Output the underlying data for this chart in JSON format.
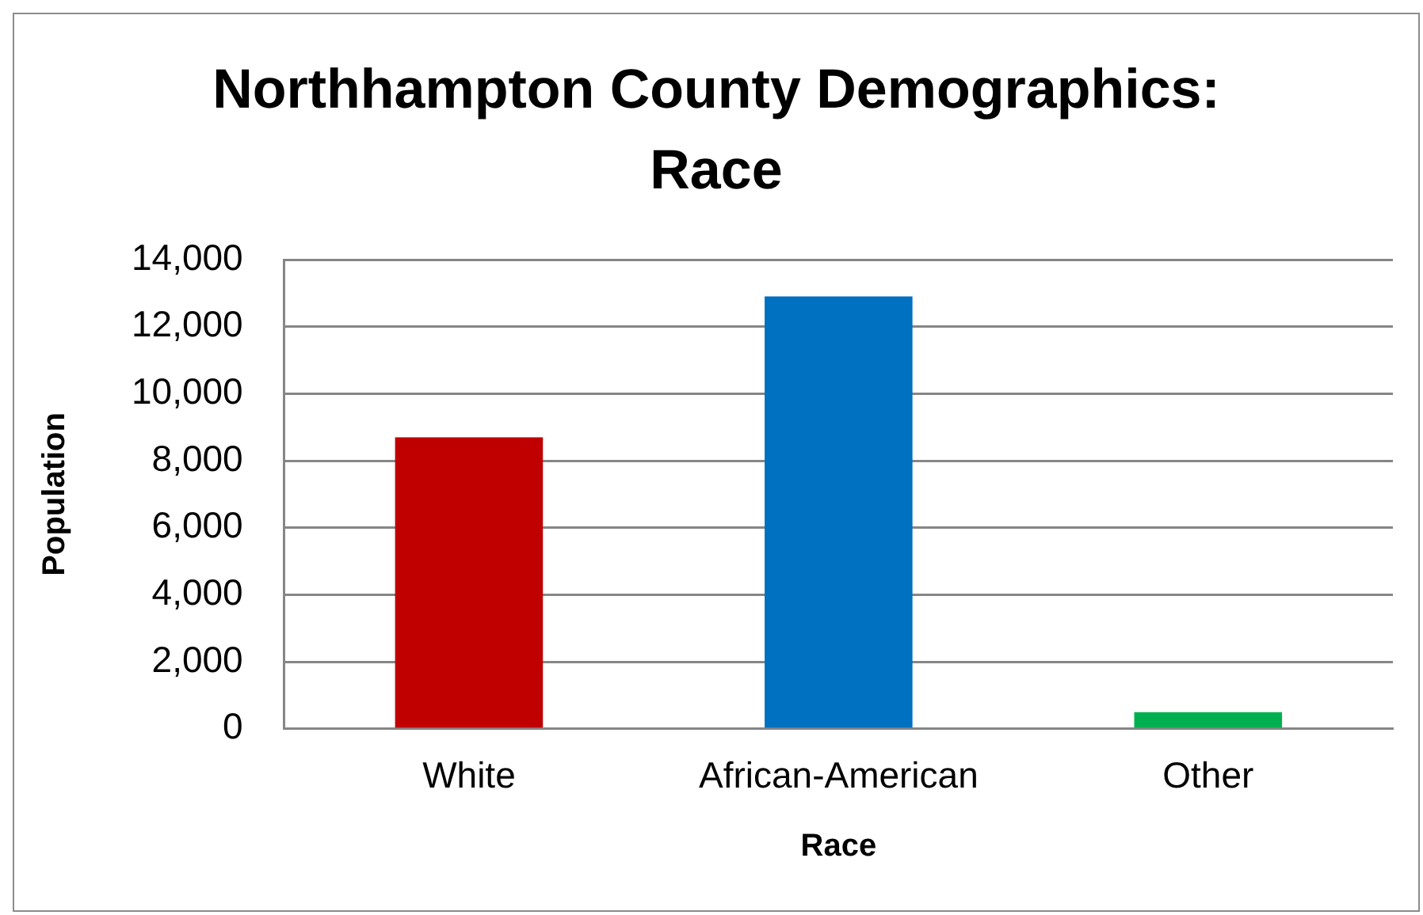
{
  "chart_data": {
    "type": "bar",
    "title": "Northhampton County Demographics: Race",
    "xlabel": "Race",
    "ylabel": "Population",
    "categories": [
      "White",
      "African-American",
      "Other"
    ],
    "values": [
      8700,
      12900,
      500
    ],
    "colors": [
      "#c00000",
      "#0070c0",
      "#00b050"
    ],
    "ylim": [
      0,
      14000
    ],
    "yticks": [
      {
        "value": 0,
        "label": "0"
      },
      {
        "value": 2000,
        "label": "2,000"
      },
      {
        "value": 4000,
        "label": "4,000"
      },
      {
        "value": 6000,
        "label": "6,000"
      },
      {
        "value": 8000,
        "label": "8,000"
      },
      {
        "value": 10000,
        "label": "10,000"
      },
      {
        "value": 12000,
        "label": "12,000"
      },
      {
        "value": 14000,
        "label": "14,000"
      }
    ],
    "grid": "y",
    "legend": false
  }
}
